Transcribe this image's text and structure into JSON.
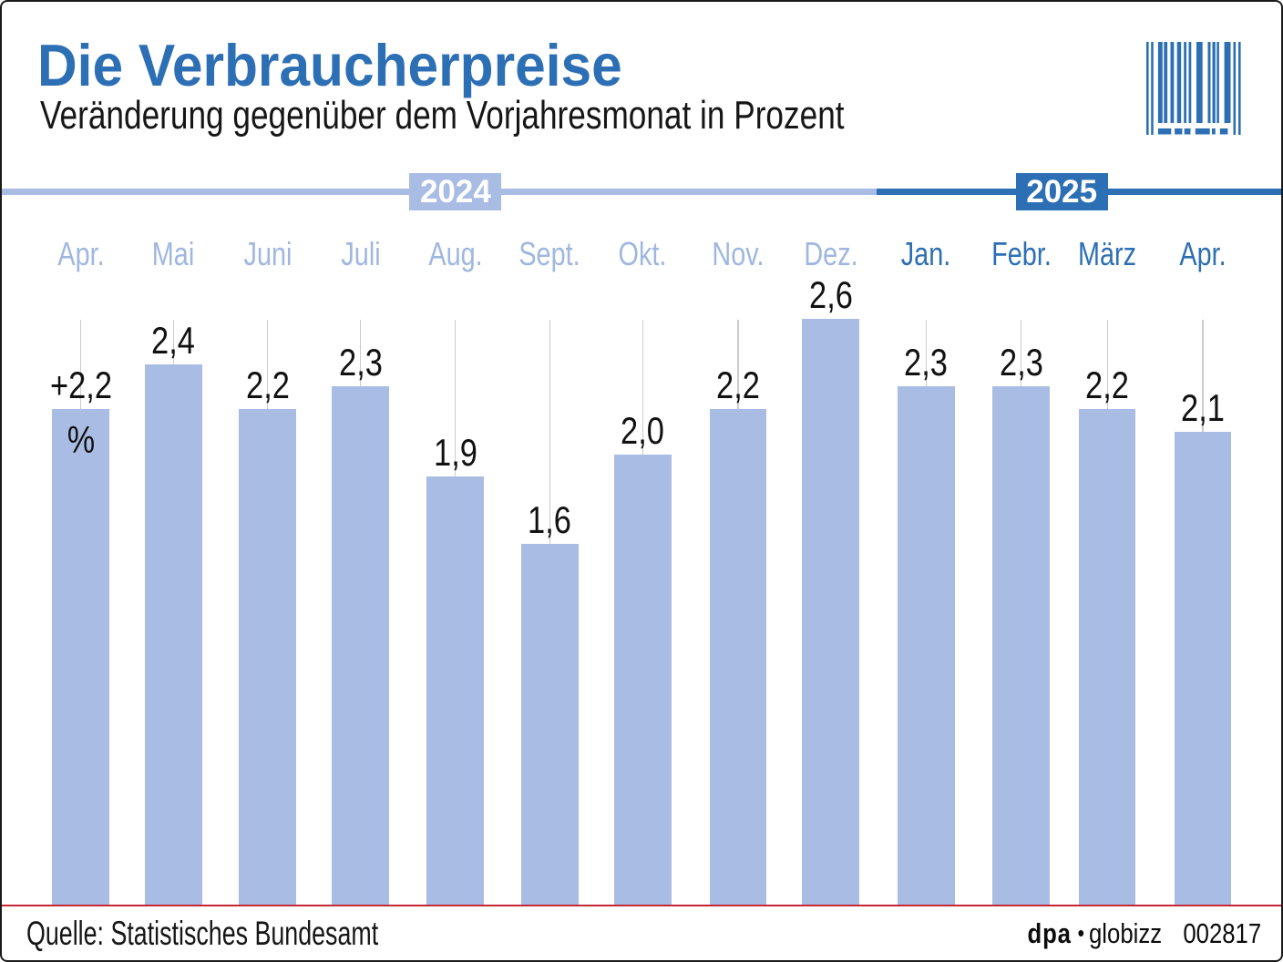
{
  "header": {
    "title": "Die Verbraucherpreise",
    "subtitle": "Veränderung gegenüber dem Vorjahresmonat in Prozent"
  },
  "timeline": {
    "years": [
      {
        "label": "2024"
      },
      {
        "label": "2025"
      }
    ]
  },
  "chart_data": {
    "type": "bar",
    "title": "Die Verbraucherpreise",
    "subtitle": "Veränderung gegenüber dem Vorjahresmonat in Prozent",
    "unit": "%",
    "categories": [
      "Apr.",
      "Mai",
      "Juni",
      "Juli",
      "Aug.",
      "Sept.",
      "Okt.",
      "Nov.",
      "Dez.",
      "Jan.",
      "Febr.",
      "März",
      "Apr."
    ],
    "category_years": [
      "2024",
      "2024",
      "2024",
      "2024",
      "2024",
      "2024",
      "2024",
      "2024",
      "2024",
      "2025",
      "2025",
      "2025",
      "2025"
    ],
    "values": [
      2.2,
      2.4,
      2.2,
      2.3,
      1.9,
      1.6,
      2.0,
      2.2,
      2.6,
      2.3,
      2.3,
      2.2,
      2.1
    ],
    "value_labels": [
      "+2,2",
      "2,4",
      "2,2",
      "2,3",
      "1,9",
      "1,6",
      "2,0",
      "2,2",
      "2,6",
      "2,3",
      "2,3",
      "2,2",
      "2,1"
    ],
    "first_bar_unit_label": "%",
    "ylim": [
      0,
      2.6
    ],
    "grid": "vertical gridline per month",
    "legend": "none"
  },
  "footer": {
    "source": "Quelle: Statistisches Bundesamt",
    "agency": "dpa",
    "bullet": "•",
    "brand": "globizz",
    "figure_number": "002817"
  },
  "colors": {
    "dark_blue": "#2d6fb4",
    "light_blue": "#a9bde4",
    "light_blue_text": "#9fb7e0",
    "red_line": "#c52836",
    "gridline": "#cccccc",
    "text_black": "#161616",
    "background": "#ffffff"
  }
}
